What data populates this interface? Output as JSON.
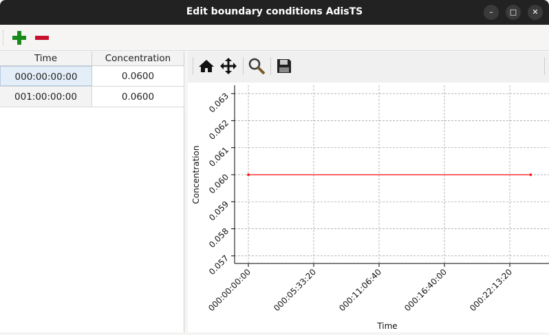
{
  "window": {
    "title": "Edit boundary conditions AdisTS",
    "controls": [
      "minimize",
      "maximize",
      "close"
    ]
  },
  "toolbar": {
    "add_icon": "plus-icon",
    "remove_icon": "minus-icon",
    "add_color": "#1a8a1a",
    "remove_color": "#c8102e"
  },
  "table": {
    "headers": [
      "Time",
      "Concentration"
    ],
    "rows": [
      [
        "000:00:00:00",
        "0.0600"
      ],
      [
        "001:00:00:00",
        "0.0600"
      ]
    ]
  },
  "plot_toolbar": {
    "icons": [
      "home-icon",
      "pan-icon",
      "zoom-icon",
      "save-icon"
    ]
  },
  "chart_data": {
    "type": "line",
    "xlabel": "Time",
    "ylabel": "Concentration",
    "x": [
      "000:00:00:00",
      "001:00:00:00"
    ],
    "x_seconds": [
      0,
      86400
    ],
    "series": [
      {
        "values": [
          0.06,
          0.06
        ],
        "color": "#ff0000"
      }
    ],
    "xticks": [
      "000:00:00:00",
      "000:05:33:20",
      "000:11:06:40",
      "000:16:40:00",
      "000:22:13:20"
    ],
    "xtick_seconds": [
      0,
      20000,
      40000,
      60000,
      80000
    ],
    "yticks": [
      "0.057",
      "0.058",
      "0.059",
      "0.060",
      "0.061",
      "0.062",
      "0.063"
    ],
    "ylim": [
      0.05672,
      0.06331
    ],
    "grid": true
  }
}
